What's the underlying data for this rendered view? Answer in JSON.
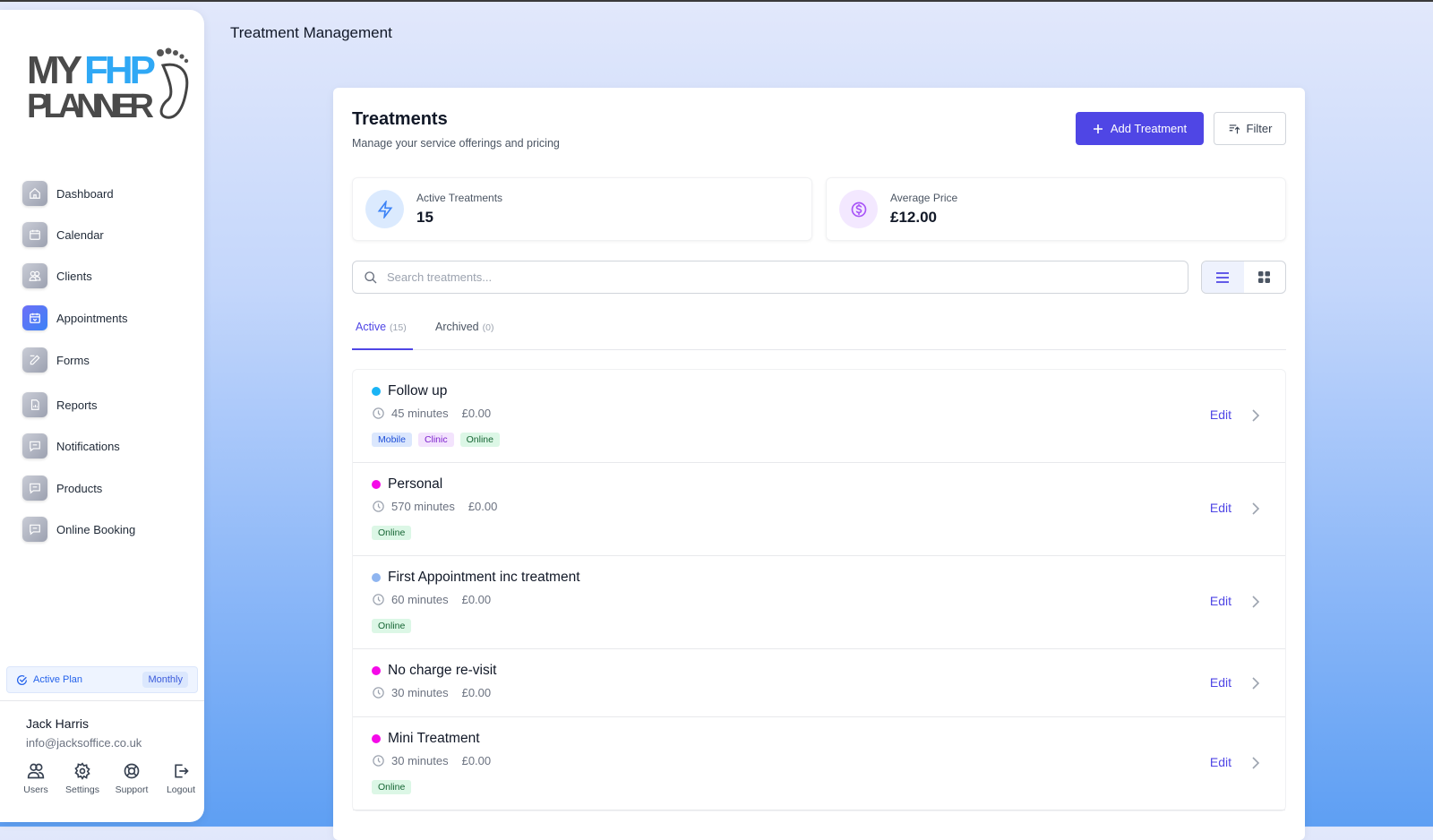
{
  "logo": {
    "text_top_dark": "MY",
    "text_top_blue": "FHP",
    "text_bottom": "PLANNER"
  },
  "sidebar": {
    "items": [
      {
        "label": "Dashboard",
        "icon": "home-icon"
      },
      {
        "label": "Calendar",
        "icon": "calendar-icon"
      },
      {
        "label": "Clients",
        "icon": "users-icon"
      },
      {
        "label": "Appointments",
        "icon": "calendar-check-icon",
        "active": true
      },
      {
        "label": "Forms",
        "icon": "edit-icon"
      },
      {
        "label": "Reports",
        "icon": "file-chart-icon"
      },
      {
        "label": "Notifications",
        "icon": "message-icon"
      },
      {
        "label": "Products",
        "icon": "message-icon"
      },
      {
        "label": "Online Booking",
        "icon": "message-icon"
      }
    ],
    "plan": {
      "label": "Active Plan",
      "badge": "Monthly"
    },
    "user": {
      "name": "Jack Harris",
      "email": "info@jacksoffice.co.uk"
    },
    "actions": [
      {
        "label": "Users"
      },
      {
        "label": "Settings"
      },
      {
        "label": "Support"
      },
      {
        "label": "Logout"
      }
    ]
  },
  "header": {
    "title": "Treatment Management"
  },
  "main": {
    "title": "Treatments",
    "subtitle": "Manage your service offerings and pricing",
    "add_label": "Add Treatment",
    "filter_label": "Filter",
    "stats": [
      {
        "label": "Active Treatments",
        "value": "15"
      },
      {
        "label": "Average Price",
        "value": "£12.00"
      }
    ],
    "search_placeholder": "Search treatments...",
    "view_mode": "list",
    "tabs": [
      {
        "label": "Active",
        "count": "(15)"
      },
      {
        "label": "Archived",
        "count": "(0)"
      }
    ],
    "edit_label": "Edit",
    "treatments": [
      {
        "name": "Follow up",
        "color": "#1ab4f5",
        "duration": "45 minutes",
        "price": "£0.00",
        "tags": [
          "Mobile",
          "Clinic",
          "Online"
        ]
      },
      {
        "name": "Personal",
        "color": "#f50ae8",
        "duration": "570 minutes",
        "price": "£0.00",
        "tags": [
          "Online"
        ]
      },
      {
        "name": "First Appointment inc treatment",
        "color": "#8fb5f0",
        "duration": "60 minutes",
        "price": "£0.00",
        "tags": [
          "Online"
        ]
      },
      {
        "name": "No charge re-visit",
        "color": "#f50ae8",
        "duration": "30 minutes",
        "price": "£0.00",
        "tags": []
      },
      {
        "name": "Mini Treatment",
        "color": "#f50ae8",
        "duration": "30 minutes",
        "price": "£0.00",
        "tags": [
          "Online"
        ]
      }
    ]
  },
  "colors": {
    "accent": "#4f46e5",
    "tag_mobile": "#dbe7fd",
    "tag_clinic": "#f3e3fd",
    "tag_online": "#dcf7e6"
  }
}
